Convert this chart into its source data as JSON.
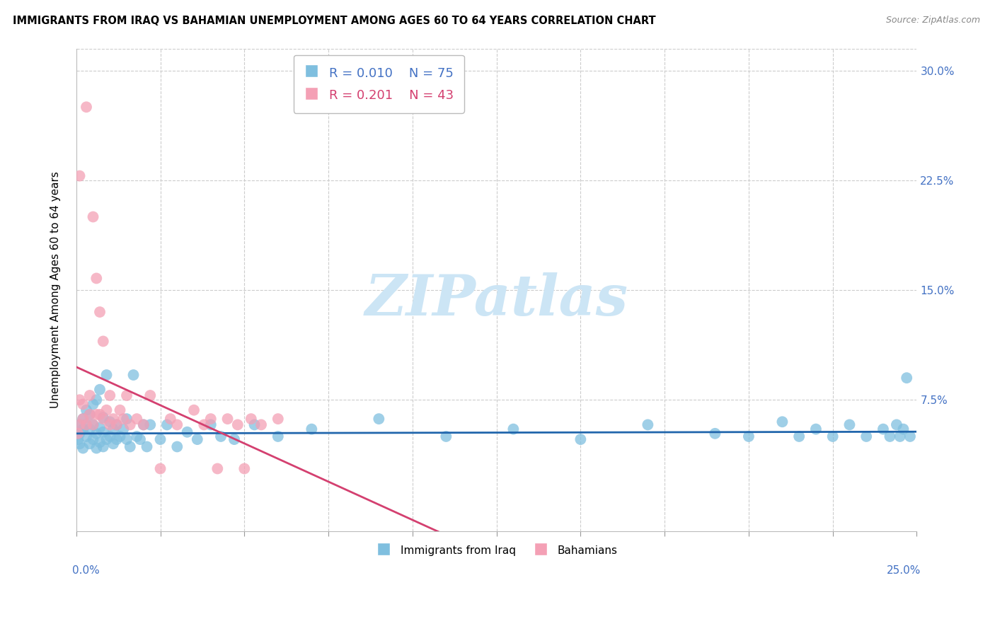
{
  "title": "IMMIGRANTS FROM IRAQ VS BAHAMIAN UNEMPLOYMENT AMONG AGES 60 TO 64 YEARS CORRELATION CHART",
  "source": "Source: ZipAtlas.com",
  "ylabel": "Unemployment Among Ages 60 to 64 years",
  "xlim": [
    0.0,
    0.25
  ],
  "ylim": [
    -0.015,
    0.315
  ],
  "yticks_right": [
    0.075,
    0.15,
    0.225,
    0.3
  ],
  "ytick_labels_right": [
    "7.5%",
    "15.0%",
    "22.5%",
    "30.0%"
  ],
  "xtick_left_label": "0.0%",
  "xtick_right_label": "25.0%",
  "legend_blue_R": "R = 0.010",
  "legend_blue_N": "N = 75",
  "legend_pink_R": "R = 0.201",
  "legend_pink_N": "N = 43",
  "blue_color": "#7fbfdf",
  "pink_color": "#f4a0b5",
  "blue_line_color": "#2166ac",
  "pink_line_color": "#d44070",
  "pink_dashed_color": "#d0a0b0",
  "watermark_text": "ZIPatlas",
  "watermark_color": "#cce5f5",
  "blue_label": "Immigrants from Iraq",
  "pink_label": "Bahamians",
  "blue_points_x": [
    0.0005,
    0.001,
    0.001,
    0.001,
    0.002,
    0.002,
    0.002,
    0.003,
    0.003,
    0.003,
    0.004,
    0.004,
    0.004,
    0.005,
    0.005,
    0.005,
    0.006,
    0.006,
    0.006,
    0.007,
    0.007,
    0.007,
    0.008,
    0.008,
    0.008,
    0.009,
    0.009,
    0.01,
    0.01,
    0.011,
    0.011,
    0.012,
    0.012,
    0.013,
    0.014,
    0.015,
    0.015,
    0.016,
    0.017,
    0.018,
    0.019,
    0.02,
    0.021,
    0.022,
    0.025,
    0.027,
    0.03,
    0.033,
    0.036,
    0.04,
    0.043,
    0.047,
    0.053,
    0.06,
    0.07,
    0.09,
    0.11,
    0.13,
    0.15,
    0.17,
    0.19,
    0.2,
    0.21,
    0.215,
    0.22,
    0.225,
    0.23,
    0.235,
    0.24,
    0.242,
    0.244,
    0.245,
    0.246,
    0.247,
    0.248
  ],
  "blue_points_y": [
    0.048,
    0.052,
    0.058,
    0.045,
    0.055,
    0.062,
    0.042,
    0.05,
    0.058,
    0.068,
    0.045,
    0.055,
    0.065,
    0.048,
    0.058,
    0.072,
    0.042,
    0.052,
    0.075,
    0.046,
    0.056,
    0.082,
    0.043,
    0.053,
    0.063,
    0.048,
    0.092,
    0.05,
    0.06,
    0.045,
    0.055,
    0.048,
    0.058,
    0.05,
    0.055,
    0.048,
    0.062,
    0.043,
    0.092,
    0.05,
    0.048,
    0.058,
    0.043,
    0.058,
    0.048,
    0.058,
    0.043,
    0.053,
    0.048,
    0.058,
    0.05,
    0.048,
    0.058,
    0.05,
    0.055,
    0.062,
    0.05,
    0.055,
    0.048,
    0.058,
    0.052,
    0.05,
    0.06,
    0.05,
    0.055,
    0.05,
    0.058,
    0.05,
    0.055,
    0.05,
    0.058,
    0.05,
    0.055,
    0.09,
    0.05
  ],
  "pink_points_x": [
    0.0005,
    0.001,
    0.001,
    0.001,
    0.002,
    0.002,
    0.003,
    0.003,
    0.004,
    0.004,
    0.005,
    0.005,
    0.006,
    0.006,
    0.007,
    0.007,
    0.008,
    0.008,
    0.009,
    0.01,
    0.01,
    0.011,
    0.012,
    0.013,
    0.014,
    0.015,
    0.016,
    0.018,
    0.02,
    0.022,
    0.025,
    0.028,
    0.03,
    0.035,
    0.038,
    0.04,
    0.042,
    0.045,
    0.048,
    0.05,
    0.052,
    0.055,
    0.06
  ],
  "pink_points_y": [
    0.052,
    0.058,
    0.228,
    0.075,
    0.062,
    0.072,
    0.058,
    0.275,
    0.065,
    0.078,
    0.058,
    0.2,
    0.065,
    0.158,
    0.065,
    0.135,
    0.062,
    0.115,
    0.068,
    0.058,
    0.078,
    0.062,
    0.058,
    0.068,
    0.062,
    0.078,
    0.058,
    0.062,
    0.058,
    0.078,
    0.028,
    0.062,
    0.058,
    0.068,
    0.058,
    0.062,
    0.028,
    0.062,
    0.058,
    0.028,
    0.062,
    0.058,
    0.062
  ]
}
